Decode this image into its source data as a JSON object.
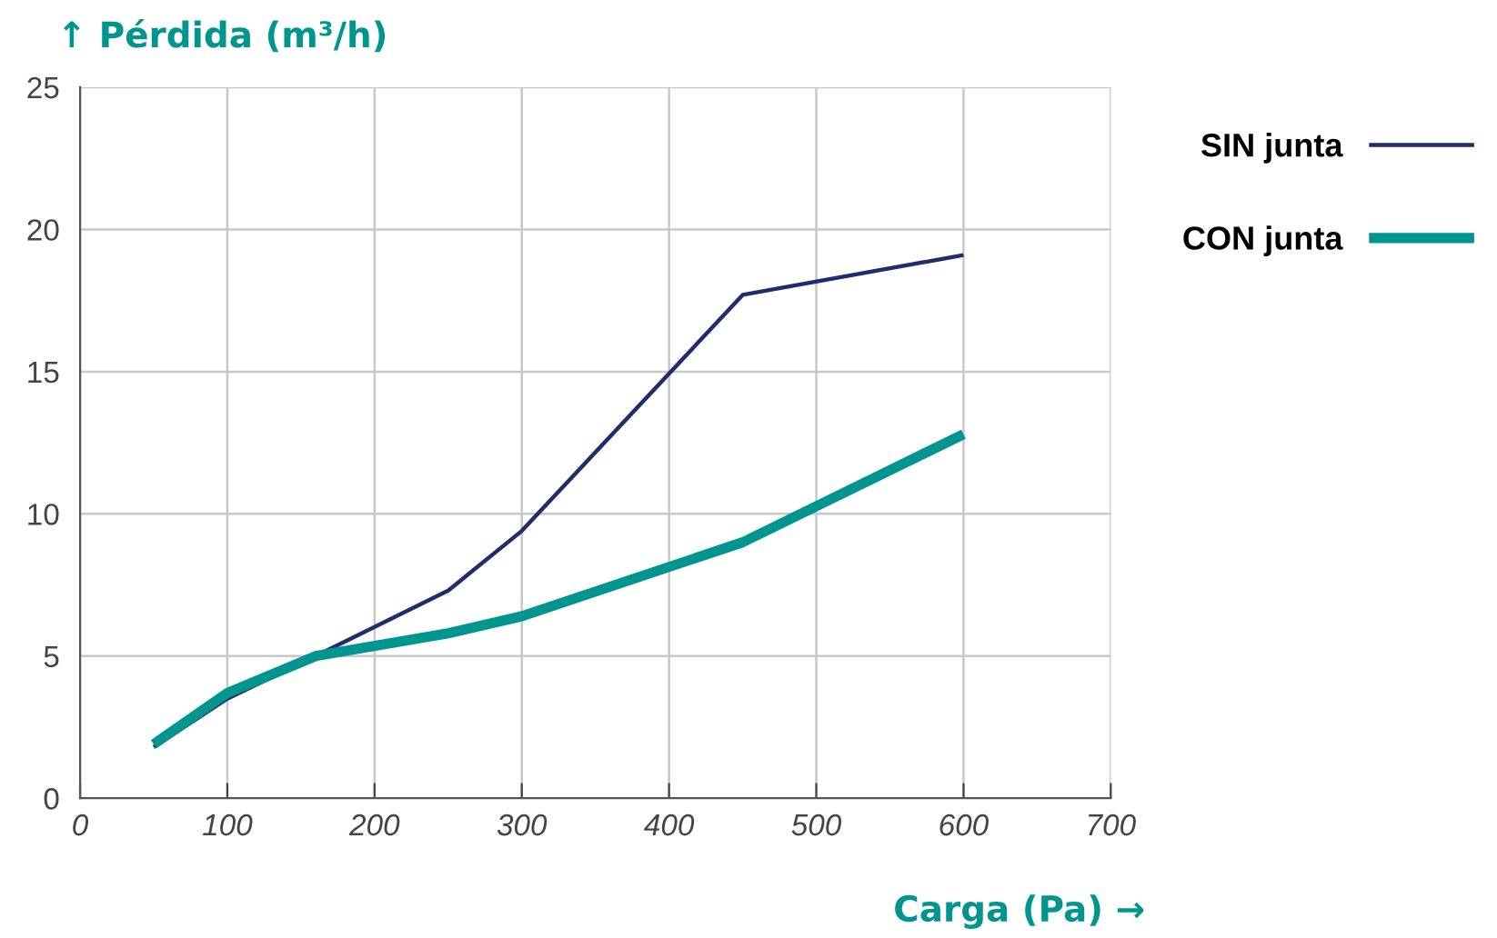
{
  "chart_data": {
    "type": "line",
    "xlabel": "Carga (Pa) →",
    "ylabel": "↑ Pérdida (m³/h)",
    "x": [
      50,
      100,
      160,
      250,
      300,
      450,
      600
    ],
    "series": [
      {
        "name": "SIN junta",
        "color": "#1f2d6e",
        "values": [
          1.8,
          3.5,
          5.0,
          7.3,
          9.4,
          17.7,
          19.1
        ]
      },
      {
        "name": "CON junta",
        "color": "#00958f",
        "values": [
          1.9,
          3.7,
          5.0,
          5.8,
          6.4,
          9.0,
          12.8
        ]
      }
    ],
    "xlim": [
      0,
      700
    ],
    "xticks": [
      0,
      100,
      200,
      300,
      400,
      500,
      600,
      700
    ],
    "ylim": [
      0,
      25
    ],
    "yticks": [
      0,
      5,
      10,
      15,
      20,
      25
    ],
    "grid": true,
    "legend": "right",
    "marker": "none",
    "line_style": "solid"
  }
}
